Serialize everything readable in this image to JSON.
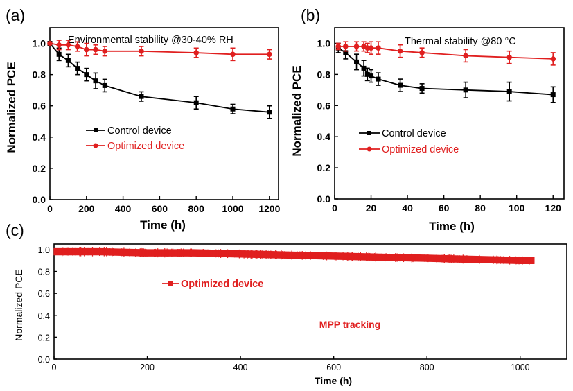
{
  "chart_data": [
    {
      "id": "a",
      "panel_label": "(a)",
      "type": "line",
      "title": "Environmental stability @30-40% RH",
      "xlabel": "Time (h)",
      "ylabel": "Normalized PCE",
      "xlim": [
        0,
        1250
      ],
      "ylim": [
        0,
        1.1
      ],
      "xticks": [
        0,
        200,
        400,
        600,
        800,
        1000,
        1200
      ],
      "yticks": [
        0.0,
        0.2,
        0.4,
        0.6,
        0.8,
        1.0
      ],
      "legend_position": "middle-left",
      "series": [
        {
          "name": "Control device",
          "color": "#000000",
          "marker": "square",
          "x": [
            0,
            50,
            100,
            150,
            200,
            250,
            300,
            500,
            800,
            1000,
            1200
          ],
          "y": [
            1.0,
            0.93,
            0.89,
            0.84,
            0.8,
            0.76,
            0.73,
            0.66,
            0.62,
            0.58,
            0.56
          ],
          "err": [
            0.0,
            0.04,
            0.04,
            0.04,
            0.04,
            0.05,
            0.04,
            0.03,
            0.04,
            0.03,
            0.04
          ]
        },
        {
          "name": "Optimized device",
          "color": "#e01f1f",
          "marker": "circle",
          "x": [
            0,
            50,
            100,
            150,
            200,
            250,
            300,
            500,
            800,
            1000,
            1200
          ],
          "y": [
            1.0,
            0.99,
            0.99,
            0.98,
            0.96,
            0.96,
            0.95,
            0.95,
            0.94,
            0.93,
            0.93
          ],
          "err": [
            0.0,
            0.03,
            0.03,
            0.03,
            0.04,
            0.03,
            0.03,
            0.03,
            0.03,
            0.04,
            0.03
          ]
        }
      ]
    },
    {
      "id": "b",
      "panel_label": "(b)",
      "type": "line",
      "title": "Thermal stability @80 °C",
      "xlabel": "Time (h)",
      "ylabel": "Normalized PCE",
      "xlim": [
        0,
        126
      ],
      "ylim": [
        0,
        1.1
      ],
      "xticks": [
        0,
        20,
        40,
        60,
        80,
        100,
        120
      ],
      "yticks": [
        0.0,
        0.2,
        0.4,
        0.6,
        0.8,
        1.0
      ],
      "legend_position": "middle-left",
      "series": [
        {
          "name": "Control device",
          "color": "#000000",
          "marker": "square",
          "x": [
            2,
            6,
            12,
            16,
            18,
            20,
            24,
            36,
            48,
            72,
            96,
            120
          ],
          "y": [
            0.97,
            0.94,
            0.88,
            0.84,
            0.8,
            0.79,
            0.77,
            0.73,
            0.71,
            0.7,
            0.69,
            0.67
          ],
          "err": [
            0.03,
            0.04,
            0.05,
            0.05,
            0.04,
            0.04,
            0.04,
            0.04,
            0.03,
            0.05,
            0.06,
            0.05
          ]
        },
        {
          "name": "Optimized device",
          "color": "#e01f1f",
          "marker": "circle",
          "x": [
            2,
            6,
            12,
            16,
            18,
            20,
            24,
            36,
            48,
            72,
            96,
            120
          ],
          "y": [
            0.98,
            0.98,
            0.98,
            0.98,
            0.97,
            0.97,
            0.97,
            0.95,
            0.94,
            0.92,
            0.91,
            0.9
          ],
          "err": [
            0.02,
            0.03,
            0.03,
            0.03,
            0.03,
            0.04,
            0.04,
            0.04,
            0.03,
            0.04,
            0.04,
            0.04
          ]
        }
      ]
    },
    {
      "id": "c",
      "panel_label": "(c)",
      "type": "line",
      "xlabel": "Time (h)",
      "ylabel": "Normalized PCE",
      "xlim": [
        0,
        1100
      ],
      "ylim": [
        0,
        1.05
      ],
      "xticks": [
        0,
        200,
        400,
        600,
        800,
        1000
      ],
      "yticks": [
        0.0,
        0.2,
        0.4,
        0.6,
        0.8,
        1.0
      ],
      "annotation": "MPP tracking",
      "series": [
        {
          "name": "Optimized device",
          "color": "#e01f1f",
          "marker": "square",
          "x": [
            0,
            100,
            200,
            300,
            400,
            500,
            600,
            700,
            800,
            900,
            1000,
            1030
          ],
          "y": [
            0.98,
            0.98,
            0.97,
            0.97,
            0.96,
            0.95,
            0.94,
            0.93,
            0.92,
            0.91,
            0.9,
            0.9
          ],
          "band_halfwidth": 0.03
        }
      ]
    }
  ]
}
